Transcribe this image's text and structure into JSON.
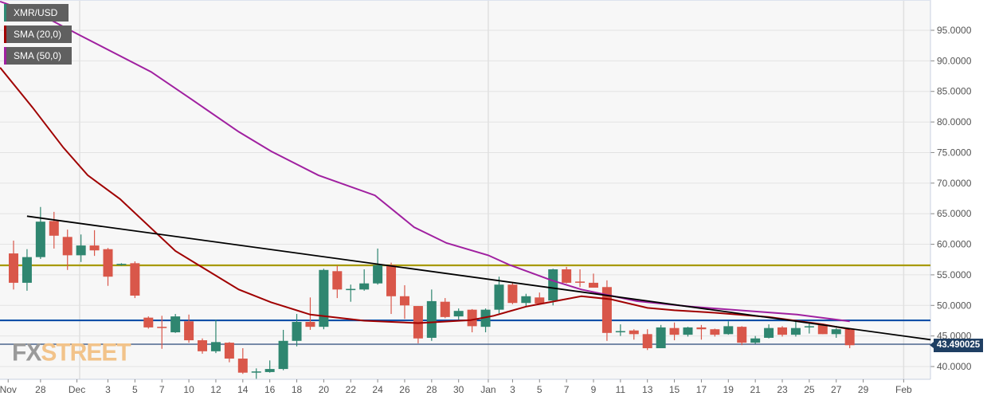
{
  "legend": [
    {
      "label": "XMR/USD",
      "color": "#2e8b74"
    },
    {
      "label": "SMA (20,0)",
      "color": "#a00000"
    },
    {
      "label": "SMA (50,0)",
      "color": "#a020a0"
    }
  ],
  "watermark": {
    "part1": "FX",
    "part2": "STREET"
  },
  "current_price_label": "43.490025",
  "chart_data": {
    "type": "candlestick",
    "symbol": "XMR/USD",
    "ylim": [
      38.0,
      99.5
    ],
    "y_ticks": [
      "40.0000",
      "45.0000",
      "50.0000",
      "55.0000",
      "60.0000",
      "65.0000",
      "70.0000",
      "75.0000",
      "80.0000",
      "85.0000",
      "90.0000",
      "95.0000"
    ],
    "y_tick_values": [
      40,
      45,
      50,
      55,
      60,
      65,
      70,
      75,
      80,
      85,
      90,
      95
    ],
    "x_ticks": [
      {
        "label": "Nov",
        "index": -0.4
      },
      {
        "label": "28",
        "index": 2
      },
      {
        "label": "Dec",
        "index": 4.7
      },
      {
        "label": "3",
        "index": 7
      },
      {
        "label": "5",
        "index": 9
      },
      {
        "label": "7",
        "index": 11
      },
      {
        "label": "10",
        "index": 13
      },
      {
        "label": "12",
        "index": 15
      },
      {
        "label": "14",
        "index": 17
      },
      {
        "label": "16",
        "index": 19
      },
      {
        "label": "18",
        "index": 21
      },
      {
        "label": "20",
        "index": 23
      },
      {
        "label": "22",
        "index": 25
      },
      {
        "label": "24",
        "index": 27
      },
      {
        "label": "26",
        "index": 29
      },
      {
        "label": "28",
        "index": 31
      },
      {
        "label": "30",
        "index": 33
      },
      {
        "label": "Jan",
        "index": 35.2
      },
      {
        "label": "3",
        "index": 37
      },
      {
        "label": "5",
        "index": 39
      },
      {
        "label": "7",
        "index": 41
      },
      {
        "label": "9",
        "index": 43
      },
      {
        "label": "11",
        "index": 45
      },
      {
        "label": "13",
        "index": 47
      },
      {
        "label": "15",
        "index": 49
      },
      {
        "label": "17",
        "index": 51
      },
      {
        "label": "19",
        "index": 53
      },
      {
        "label": "21",
        "index": 55
      },
      {
        "label": "23",
        "index": 57
      },
      {
        "label": "25",
        "index": 59
      },
      {
        "label": "27",
        "index": 61
      },
      {
        "label": "29",
        "index": 63
      },
      {
        "label": "Feb",
        "index": 66
      }
    ],
    "month_grid_indices": [
      4.9,
      35.2,
      66
    ],
    "candles_ohlc": [
      [
        58.5,
        60.6,
        52.6,
        53.7
      ],
      [
        53.7,
        59.2,
        52.4,
        57.9
      ],
      [
        57.9,
        66.1,
        57.6,
        63.7
      ],
      [
        63.8,
        65.3,
        59.3,
        61.4
      ],
      [
        61.2,
        62.4,
        55.8,
        58.2
      ],
      [
        58.2,
        61.6,
        57.1,
        59.8
      ],
      [
        59.8,
        62.3,
        58.1,
        59.0
      ],
      [
        59.2,
        59.4,
        53.2,
        54.7
      ],
      [
        56.6,
        56.9,
        56.5,
        56.8
      ],
      [
        56.9,
        57.2,
        51.2,
        51.6
      ],
      [
        48.0,
        48.2,
        46.2,
        46.4
      ],
      [
        46.5,
        48.3,
        42.9,
        46.3
      ],
      [
        45.6,
        48.6,
        45.5,
        48.2
      ],
      [
        47.4,
        48.5,
        43.9,
        44.3
      ],
      [
        44.3,
        44.6,
        42.1,
        42.5
      ],
      [
        42.5,
        47.7,
        42.2,
        44.0
      ],
      [
        43.9,
        44.0,
        40.7,
        41.3
      ],
      [
        41.3,
        43.0,
        38.8,
        39.0
      ],
      [
        39.0,
        39.7,
        38.0,
        39.2
      ],
      [
        39.1,
        41.0,
        39.0,
        39.6
      ],
      [
        39.6,
        46.0,
        39.4,
        44.2
      ],
      [
        44.2,
        48.6,
        43.3,
        47.3
      ],
      [
        47.3,
        51.3,
        46.0,
        46.5
      ],
      [
        46.5,
        56.0,
        46.1,
        55.8
      ],
      [
        55.6,
        56.5,
        51.2,
        52.6
      ],
      [
        52.5,
        53.4,
        50.6,
        52.7
      ],
      [
        52.6,
        55.9,
        52.4,
        53.6
      ],
      [
        53.6,
        59.3,
        53.4,
        56.6
      ],
      [
        56.6,
        57.0,
        48.6,
        51.5
      ],
      [
        51.5,
        53.3,
        47.8,
        50.0
      ],
      [
        49.9,
        49.9,
        43.8,
        44.6
      ],
      [
        44.7,
        52.6,
        44.2,
        50.7
      ],
      [
        50.6,
        51.2,
        47.9,
        48.1
      ],
      [
        48.2,
        49.5,
        47.7,
        49.1
      ],
      [
        49.3,
        49.4,
        45.6,
        46.6
      ],
      [
        46.5,
        49.5,
        45.6,
        49.3
      ],
      [
        49.3,
        54.7,
        48.7,
        53.4
      ],
      [
        53.4,
        53.7,
        50.2,
        50.4
      ],
      [
        50.4,
        51.9,
        49.9,
        51.5
      ],
      [
        51.3,
        52.1,
        50.3,
        50.3
      ],
      [
        50.8,
        56.0,
        50.0,
        55.9
      ],
      [
        55.9,
        56.3,
        53.6,
        53.7
      ],
      [
        53.9,
        55.9,
        53.0,
        53.7
      ],
      [
        53.7,
        55.2,
        52.9,
        52.9
      ],
      [
        53.0,
        54.1,
        44.2,
        45.5
      ],
      [
        45.6,
        46.9,
        45.0,
        45.8
      ],
      [
        45.9,
        46.1,
        44.4,
        45.3
      ],
      [
        45.3,
        46.1,
        42.7,
        43.0
      ],
      [
        43.0,
        46.8,
        43.0,
        46.4
      ],
      [
        46.3,
        47.2,
        44.3,
        45.2
      ],
      [
        45.2,
        46.5,
        44.9,
        46.4
      ],
      [
        46.4,
        46.8,
        44.4,
        46.1
      ],
      [
        46.1,
        46.2,
        44.9,
        45.2
      ],
      [
        45.3,
        47.4,
        45.2,
        46.6
      ],
      [
        46.5,
        46.6,
        43.5,
        43.9
      ],
      [
        43.9,
        45.0,
        43.7,
        44.6
      ],
      [
        44.7,
        46.9,
        44.6,
        46.3
      ],
      [
        46.4,
        46.6,
        44.9,
        45.2
      ],
      [
        45.2,
        47.4,
        44.9,
        46.3
      ],
      [
        46.4,
        47.0,
        45.4,
        46.6
      ],
      [
        46.8,
        47.0,
        45.3,
        45.3
      ],
      [
        45.3,
        46.3,
        44.7,
        46.1
      ],
      [
        46.1,
        46.2,
        43.0,
        43.49
      ]
    ],
    "sma20": [
      [
        -1,
        88.9
      ],
      [
        1.4,
        82.4
      ],
      [
        3.7,
        75.8
      ],
      [
        5.5,
        71.3
      ],
      [
        7.9,
        67.4
      ],
      [
        12,
        58.9
      ],
      [
        16.7,
        52.6
      ],
      [
        19.1,
        50.5
      ],
      [
        22,
        48.5
      ],
      [
        26,
        47.5
      ],
      [
        30,
        47.1
      ],
      [
        33.9,
        47.6
      ],
      [
        35.6,
        48.3
      ],
      [
        38,
        49.8
      ],
      [
        42.1,
        51.5
      ],
      [
        44.3,
        51.0
      ],
      [
        47,
        49.6
      ],
      [
        49,
        49.2
      ],
      [
        52,
        48.8
      ],
      [
        56,
        48.1
      ],
      [
        60,
        46.9
      ],
      [
        62,
        46.1
      ]
    ],
    "sma50": [
      [
        -1,
        99.7
      ],
      [
        2.4,
        97.1
      ],
      [
        4.9,
        94.2
      ],
      [
        10.2,
        88.2
      ],
      [
        13.2,
        83.7
      ],
      [
        16.7,
        78.4
      ],
      [
        19.1,
        75.2
      ],
      [
        22.6,
        71.3
      ],
      [
        26.8,
        68.0
      ],
      [
        29.7,
        62.8
      ],
      [
        32.1,
        60.2
      ],
      [
        35.2,
        58.2
      ],
      [
        36.8,
        56.6
      ],
      [
        39.9,
        54.1
      ],
      [
        42.1,
        52.6
      ],
      [
        46.2,
        50.7
      ],
      [
        50.2,
        49.8
      ],
      [
        58.1,
        48.5
      ],
      [
        62,
        47.4
      ]
    ],
    "trendline": [
      [
        1.0,
        64.6
      ],
      [
        68.0,
        44.4
      ]
    ],
    "horizontal_levels": [
      {
        "value": 56.55,
        "color": "#a89a00"
      },
      {
        "value": 47.55,
        "color": "#0a4fa8"
      },
      {
        "value": 43.65,
        "color": "#2a4a7a"
      }
    ],
    "colors": {
      "up": "#2f8670",
      "down": "#d9574a",
      "sma20": "#a00000",
      "sma50": "#a020a0",
      "trend": "#000000"
    }
  }
}
